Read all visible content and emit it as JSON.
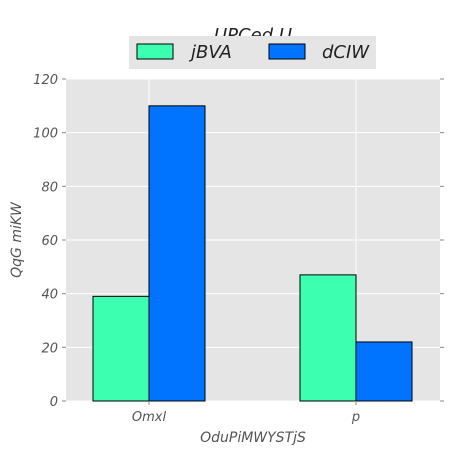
{
  "chart_data": {
    "type": "bar",
    "title": "UPCed U",
    "xlabel": "OduPiMWYSTjS",
    "ylabel": "QqG  miKW",
    "categories": [
      "Omxl",
      "p"
    ],
    "series": [
      {
        "name": "jBVA",
        "values": [
          39,
          47
        ],
        "color": "#3dffb0"
      },
      {
        "name": "dCIW",
        "values": [
          110,
          22
        ],
        "color": "#0073ff"
      }
    ],
    "ylim": [
      0,
      120
    ],
    "yticks": [
      0,
      20,
      40,
      60,
      80,
      100,
      120
    ],
    "grid": true,
    "legend_position": "top-center",
    "plot_background": "#e5e5e5",
    "grid_color": "#ffffff"
  }
}
